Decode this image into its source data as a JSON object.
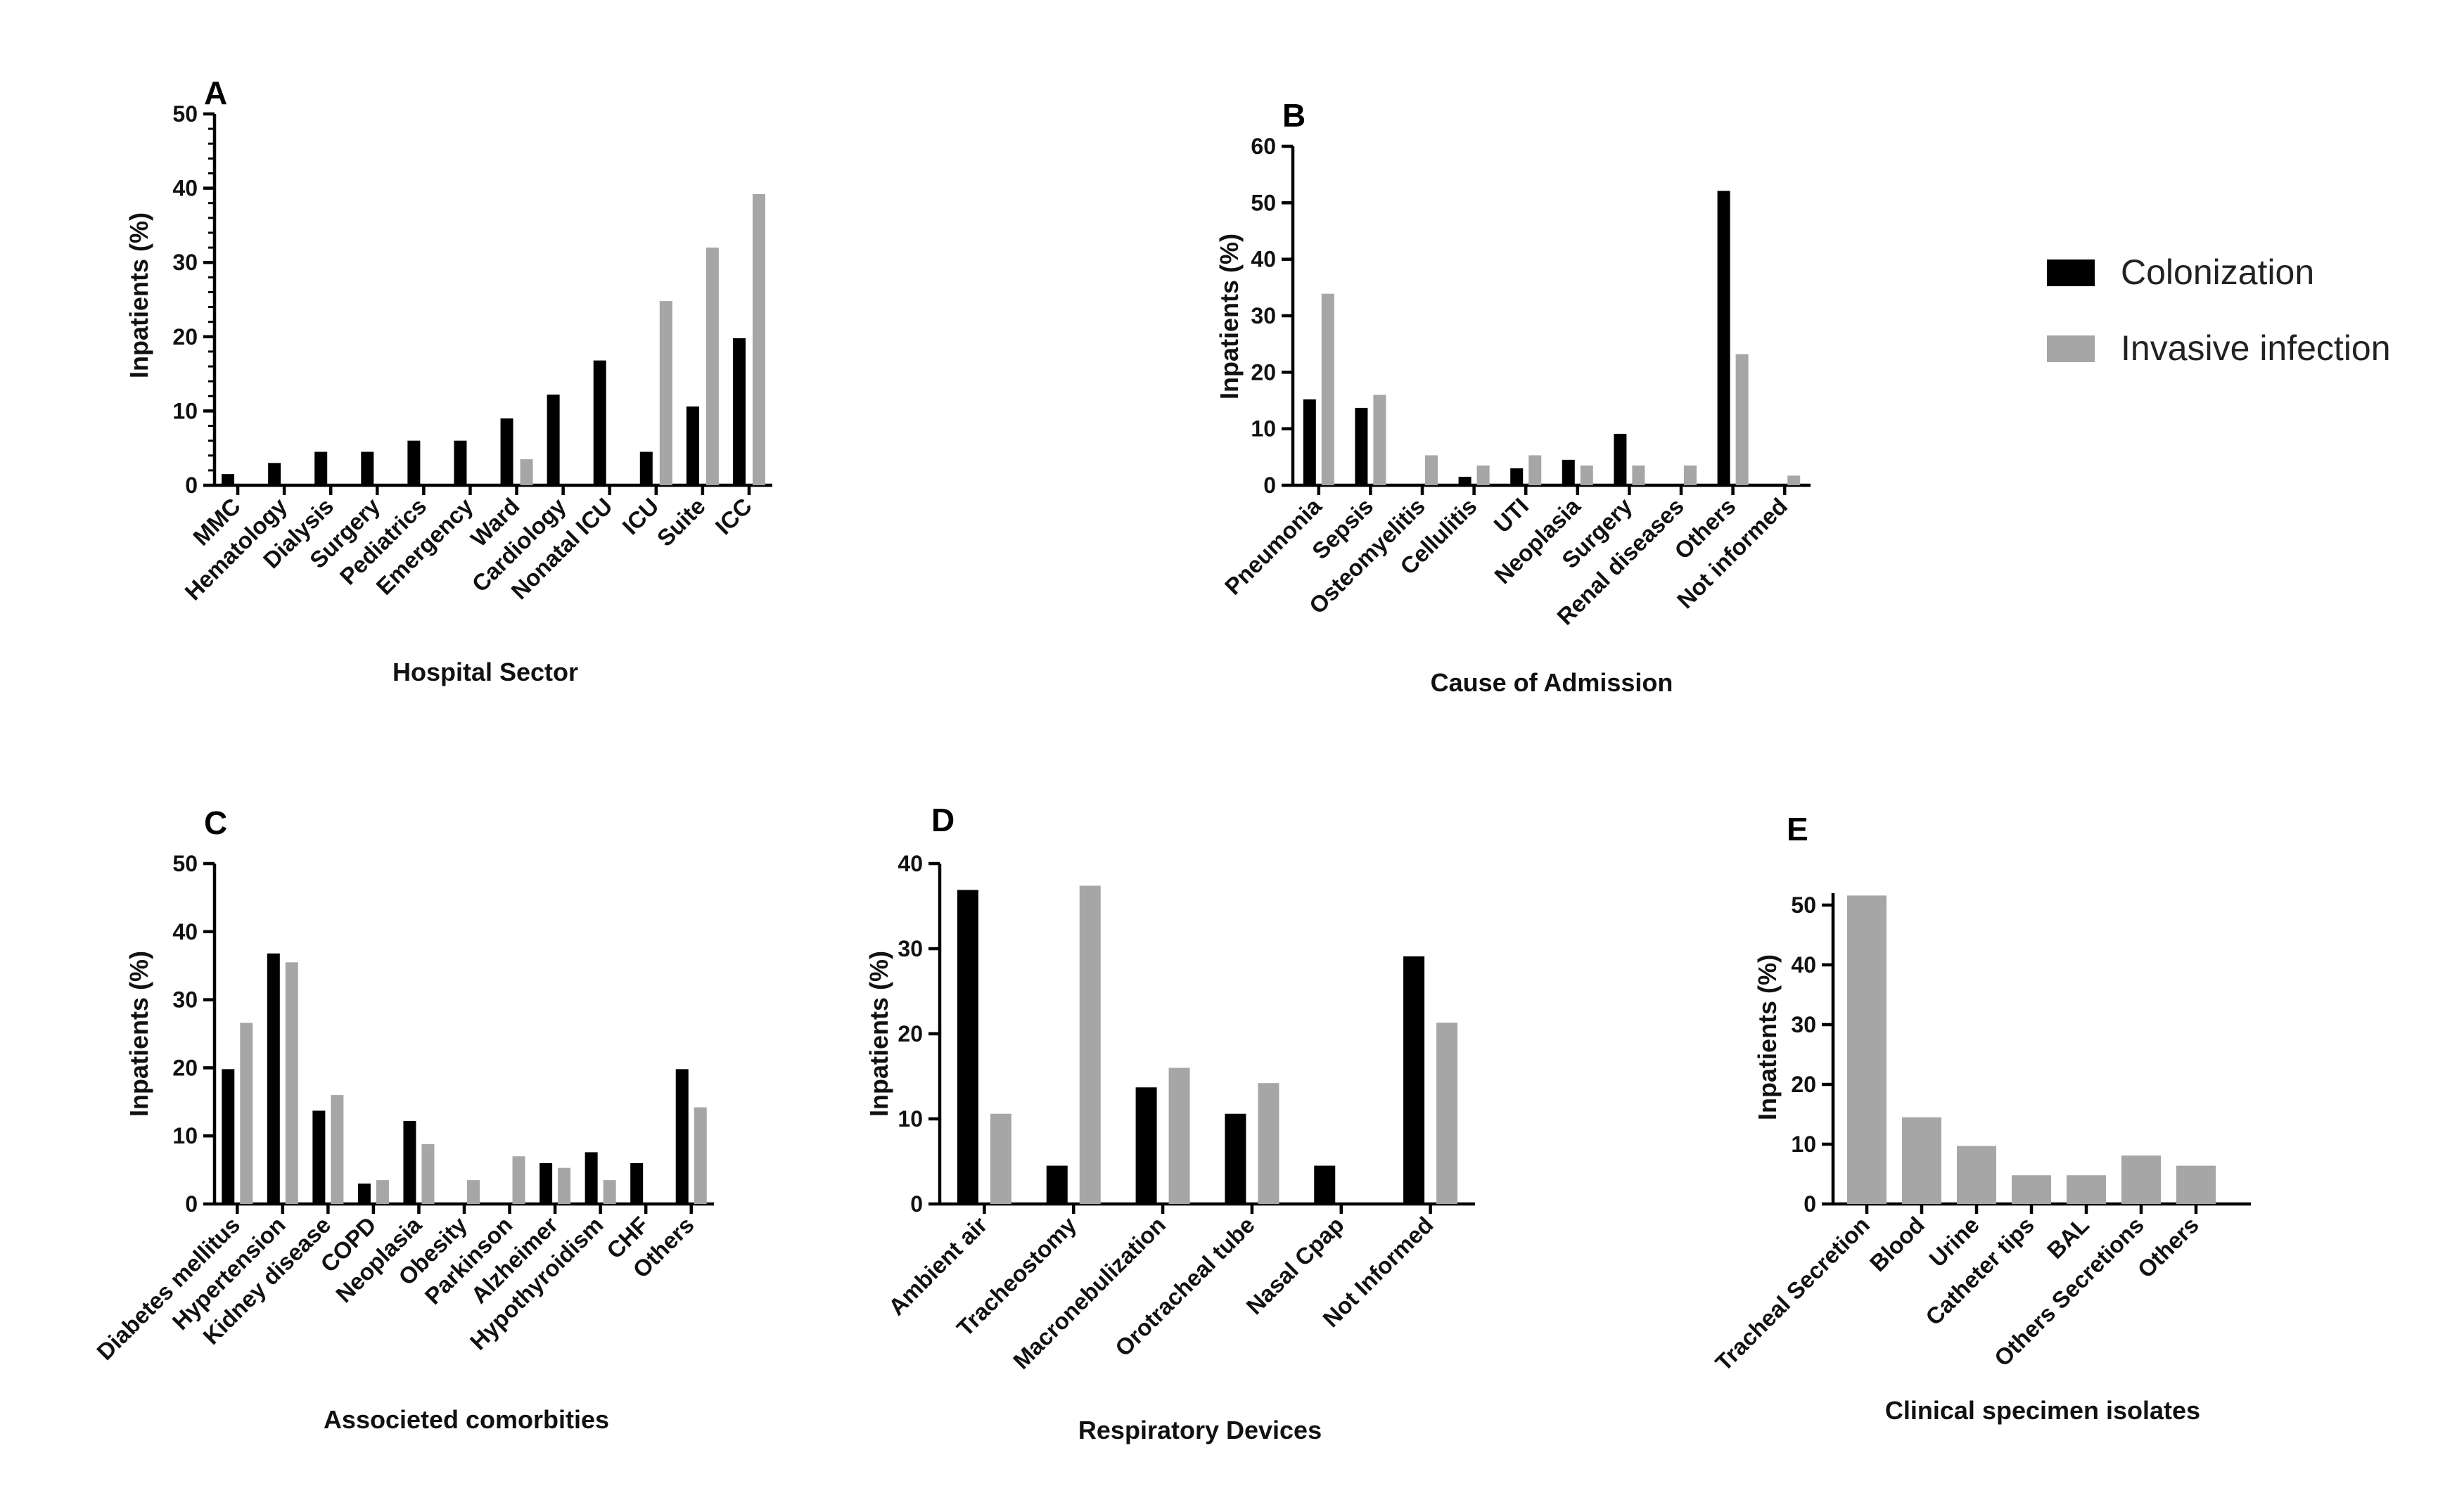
{
  "colors": {
    "colonization": "#000000",
    "invasive": "#a6a6a6"
  },
  "legend": {
    "items": [
      {
        "label": "Colonization",
        "color": "#000000"
      },
      {
        "label": "Invasive infection",
        "color": "#a6a6a6"
      }
    ]
  },
  "chart_data": [
    {
      "panel": "A",
      "type": "bar",
      "xlabel": "Hospital Sector",
      "ylabel": "Inpatients (%)",
      "ylim": [
        0,
        50
      ],
      "yticks": [
        0,
        10,
        20,
        30,
        40,
        50
      ],
      "categories": [
        "MMC",
        "Hematology",
        "Dialysis",
        "Surgery",
        "Pediatrics",
        "Emergency",
        "Ward",
        "Cardiology",
        "Nonatal ICU",
        "ICU",
        "Suite",
        "ICC"
      ],
      "series": [
        {
          "name": "Colonization",
          "values": [
            1.5,
            3,
            4.5,
            4.5,
            6,
            6,
            9,
            12.2,
            16.8,
            4.5,
            10.6,
            19.8
          ]
        },
        {
          "name": "Invasive infection",
          "values": [
            0,
            0,
            0,
            0,
            0,
            0,
            3.5,
            0,
            0,
            24.8,
            32,
            39.2
          ]
        }
      ]
    },
    {
      "panel": "B",
      "type": "bar",
      "xlabel": "Cause of Admission",
      "ylabel": "Inpatients (%)",
      "ylim": [
        0,
        60
      ],
      "yticks": [
        0,
        10,
        20,
        30,
        40,
        50,
        60
      ],
      "categories": [
        "Pneumonia",
        "Sepsis",
        "Osteomyelitis",
        "Cellulitis",
        "UTI",
        "Neoplasia",
        "Surgery",
        "Renal diseases",
        "Others",
        "Not informed"
      ],
      "series": [
        {
          "name": "Colonization",
          "values": [
            15.2,
            13.7,
            0,
            1.5,
            3,
            4.5,
            9.1,
            0,
            52.1,
            0
          ]
        },
        {
          "name": "Invasive infection",
          "values": [
            33.9,
            16,
            5.3,
            3.5,
            5.3,
            3.5,
            3.5,
            3.5,
            23.2,
            1.7
          ]
        }
      ]
    },
    {
      "panel": "C",
      "type": "bar",
      "xlabel": "Associeted comorbities",
      "ylabel": "Inpatients (%)",
      "ylim": [
        0,
        50
      ],
      "yticks": [
        0,
        10,
        20,
        30,
        40,
        50
      ],
      "categories": [
        "Diabetes mellitus",
        "Hypertension",
        "Kidney disease",
        "COPD",
        "Neoplasia",
        "Obesity",
        "Parkinson",
        "Alzheimer",
        "Hypothyroidism",
        "CHF",
        "Others"
      ],
      "series": [
        {
          "name": "Colonization",
          "values": [
            19.8,
            36.8,
            13.7,
            3,
            12.2,
            0,
            0,
            6,
            7.6,
            6,
            19.8
          ]
        },
        {
          "name": "Invasive infection",
          "values": [
            26.6,
            35.5,
            16,
            3.5,
            8.8,
            3.5,
            7,
            5.3,
            3.5,
            0,
            14.2
          ]
        }
      ]
    },
    {
      "panel": "D",
      "type": "bar",
      "xlabel": "Respiratory Devices",
      "ylabel": "Inpatients (%)",
      "ylim": [
        0,
        40
      ],
      "yticks": [
        0,
        10,
        20,
        30,
        40
      ],
      "categories": [
        "Ambient air",
        "Tracheostomy",
        "Macronebulization",
        "Orotracheal tube",
        "Nasal Cpap",
        "Not Informed"
      ],
      "series": [
        {
          "name": "Colonization",
          "values": [
            36.9,
            4.5,
            13.7,
            10.6,
            4.5,
            29.1
          ]
        },
        {
          "name": "Invasive infection",
          "values": [
            10.6,
            37.4,
            16,
            14.2,
            0,
            21.3
          ]
        }
      ]
    },
    {
      "panel": "E",
      "type": "bar",
      "xlabel": "Clinical specimen isolates",
      "ylabel": "Inpatients (%)",
      "ylim": [
        0,
        52
      ],
      "yticks": [
        0,
        10,
        20,
        30,
        40,
        50
      ],
      "categories": [
        "Tracheal Secretion",
        "Blood",
        "Urine",
        "Catheter tips",
        "BAL",
        "Others Secretions",
        "Others"
      ],
      "series": [
        {
          "name": "Invasive infection",
          "values": [
            51.6,
            14.5,
            9.7,
            4.8,
            4.8,
            8.1,
            6.4
          ]
        }
      ]
    }
  ]
}
